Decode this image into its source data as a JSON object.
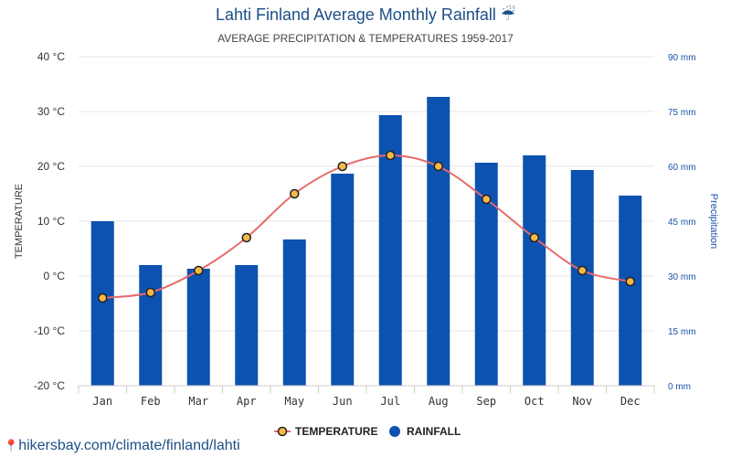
{
  "chart_data": {
    "type": "bar+line",
    "title": "Lahti Finland Average Monthly Rainfall ☔",
    "subtitle": "AVERAGE PRECIPITATION & TEMPERATURES 1959-2017",
    "categories": [
      "Jan",
      "Feb",
      "Mar",
      "Apr",
      "May",
      "Jun",
      "Jul",
      "Aug",
      "Sep",
      "Oct",
      "Nov",
      "Dec"
    ],
    "series": [
      {
        "name": "TEMPERATURE",
        "kind": "line",
        "axis": "left",
        "values": [
          -4,
          -3,
          1,
          7,
          15,
          20,
          22,
          20,
          14,
          7,
          1,
          -1
        ]
      },
      {
        "name": "RAINFALL",
        "kind": "bar",
        "axis": "right",
        "values": [
          45,
          33,
          32,
          33,
          40,
          58,
          74,
          79,
          61,
          63,
          59,
          52
        ]
      }
    ],
    "y_left": {
      "label": "TEMPERATURE",
      "min": -20,
      "max": 40,
      "ticks": [
        -20,
        -10,
        0,
        10,
        20,
        30,
        40
      ],
      "tick_labels": [
        "-20 °C",
        "-10 °C",
        "0 °C",
        "10 °C",
        "20 °C",
        "30 °C",
        "40 °C"
      ]
    },
    "y_right": {
      "label": "Precipitation",
      "min": 0,
      "max": 90,
      "ticks": [
        0,
        15,
        30,
        45,
        60,
        75,
        90
      ],
      "tick_labels": [
        "0 mm",
        "15 mm",
        "30 mm",
        "45 mm",
        "60 mm",
        "75 mm",
        "90 mm"
      ]
    },
    "grid": true,
    "legend": "bottom-center",
    "colors": {
      "bar": "#0d52b0",
      "line": "#e86a6a",
      "marker_fill": "#f5b94a",
      "marker_stroke": "#222222",
      "grid": "#e6e6e6"
    }
  },
  "source": "hikersbay.com/climate/finland/lahti"
}
